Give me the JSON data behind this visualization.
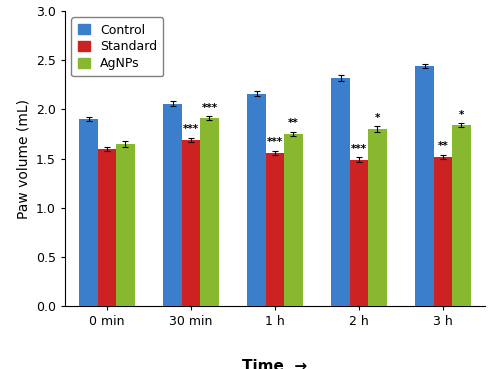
{
  "categories": [
    "0 min",
    "30 min",
    "1 h",
    "2 h",
    "3 h"
  ],
  "control_values": [
    1.9,
    2.06,
    2.16,
    2.32,
    2.44
  ],
  "standard_values": [
    1.6,
    1.69,
    1.56,
    1.49,
    1.52
  ],
  "agnps_values": [
    1.65,
    1.91,
    1.75,
    1.8,
    1.84
  ],
  "control_errors": [
    0.022,
    0.028,
    0.028,
    0.028,
    0.022
  ],
  "standard_errors": [
    0.022,
    0.022,
    0.022,
    0.022,
    0.022
  ],
  "agnps_errors": [
    0.028,
    0.022,
    0.022,
    0.028,
    0.022
  ],
  "control_color": "#3B7FCC",
  "standard_color": "#CC2222",
  "agnps_color": "#88B830",
  "bar_width": 0.22,
  "ylabel": "Paw volume (mL)",
  "xlabel": "Time",
  "ylim": [
    0,
    3.0
  ],
  "yticks": [
    0,
    0.5,
    1.0,
    1.5,
    2.0,
    2.5,
    3.0
  ],
  "legend_labels": [
    "Control",
    "Standard",
    "AgNPs"
  ],
  "standard_annotations": [
    "",
    "***",
    "***",
    "***",
    "**"
  ],
  "agnps_annotations": [
    "",
    "***",
    "**",
    "*",
    "*"
  ],
  "axis_fontsize": 10,
  "legend_fontsize": 9,
  "tick_fontsize": 9,
  "annotation_fontsize": 7.5
}
